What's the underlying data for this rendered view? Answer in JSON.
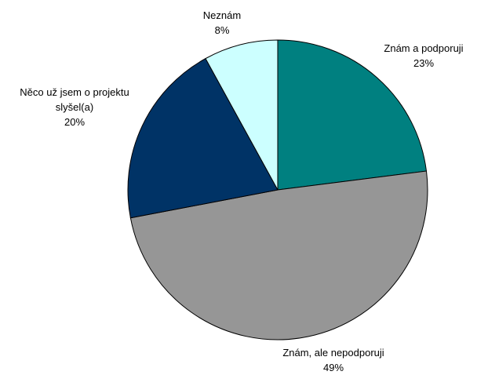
{
  "chart_data": {
    "type": "pie",
    "categories": [
      "Znám a podporuji",
      "Znám, ale nepodporuji",
      "Něco už jsem o projektu slyšel(a)",
      "Neznám"
    ],
    "values": [
      23,
      49,
      20,
      8
    ],
    "value_labels": [
      "23%",
      "49%",
      "20%",
      "8%"
    ],
    "colors": [
      "#008080",
      "#969696",
      "#003366",
      "#ccffff"
    ]
  }
}
